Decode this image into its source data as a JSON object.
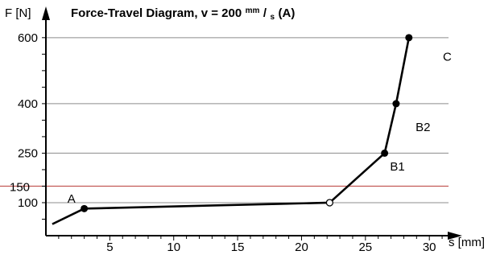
{
  "chart_data": {
    "type": "line",
    "title_parts": {
      "pre": "Force-Travel Diagram, v = 200",
      "unit_num": "mm",
      "slash": "/",
      "unit_den": "s",
      "post": " (A)"
    },
    "xlabel": "s [mm]",
    "ylabel": "F [N]",
    "xlim": [
      0,
      31.5
    ],
    "ylim": [
      0,
      680
    ],
    "x_ticks": [
      5,
      10,
      15,
      20,
      25,
      30
    ],
    "y_major_ticks": [
      100,
      250,
      400,
      600
    ],
    "y_minor_ticks": [
      50,
      150,
      200,
      300,
      350,
      450,
      500,
      550
    ],
    "gridlines": [
      100,
      250,
      400,
      600
    ],
    "threshold": {
      "value": 150,
      "label": "150",
      "color": "#c0504d"
    },
    "series": [
      {
        "color": "#000000",
        "points": [
          {
            "x": 0.5,
            "y": 35,
            "marker": "none"
          },
          {
            "x": 3,
            "y": 82,
            "marker": "filled"
          },
          {
            "x": 22.2,
            "y": 100,
            "marker": "open"
          },
          {
            "x": 26.5,
            "y": 250,
            "marker": "filled"
          },
          {
            "x": 27.4,
            "y": 400,
            "marker": "filled"
          },
          {
            "x": 28.4,
            "y": 600,
            "marker": "filled"
          }
        ]
      }
    ],
    "region_labels": [
      {
        "text": "A",
        "x": 2,
        "y": 100
      },
      {
        "text": "B1",
        "x": 27.5,
        "y": 198
      },
      {
        "text": "B2",
        "x": 29.5,
        "y": 317
      },
      {
        "text": "C",
        "x": 31.4,
        "y": 530
      }
    ]
  }
}
